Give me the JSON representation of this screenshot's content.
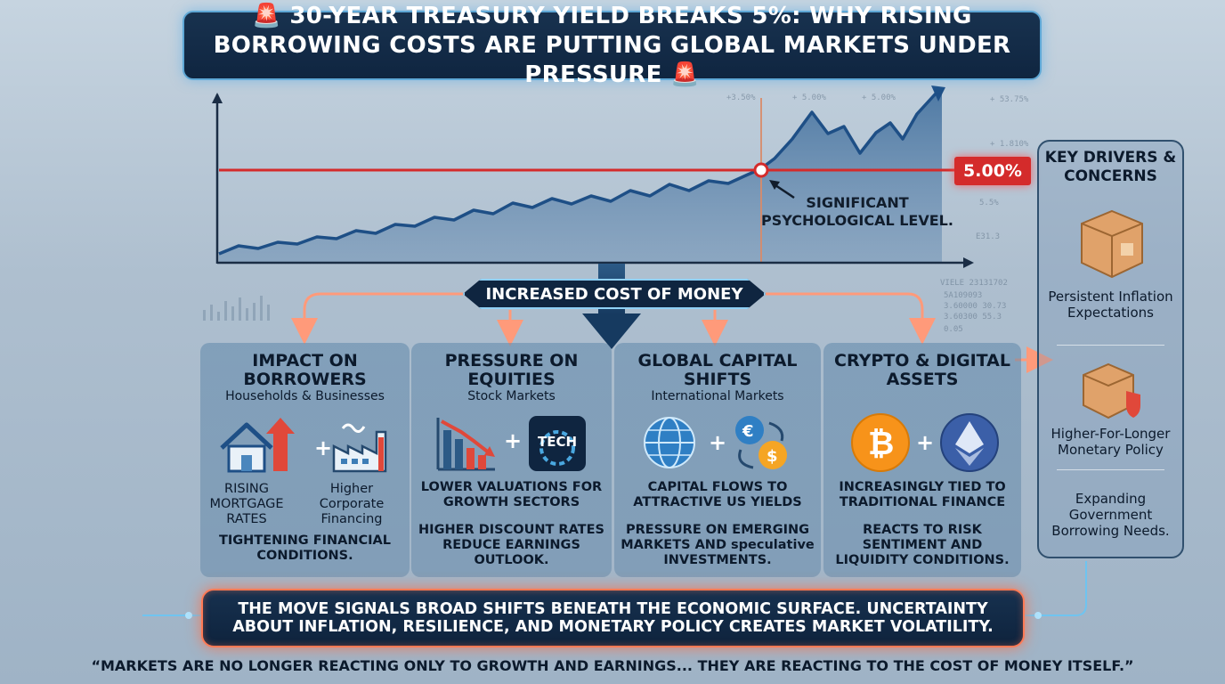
{
  "title": "🚨 30-YEAR TREASURY YIELD BREAKS 5%: WHY RISING BORROWING COSTS ARE PUTTING GLOBAL MARKETS UNDER PRESSURE 🚨",
  "chart": {
    "threshold_label": "5.00%",
    "annotation": "SIGNIFICANT PSYCHOLOGICAL LEVEL.",
    "colors": {
      "line": "#1e4f86",
      "threshold": "#d42b2b",
      "alert": "#ff5a3a"
    }
  },
  "center_banner": "INCREASED COST OF MONEY",
  "panels": [
    {
      "title": "IMPACT ON BORROWERS",
      "subtitle": "Households & Businesses",
      "icons": [
        "house-arrow-icon",
        "factory-icon"
      ],
      "left_label": "RISING MORTGAGE RATES",
      "right_label": "Higher Corporate Financing",
      "note": "TIGHTENING FINANCIAL CONDITIONS."
    },
    {
      "title": "PRESSURE ON EQUITIES",
      "subtitle": "Stock Markets",
      "icons": [
        "falling-bars-icon",
        "tech-gear-icon"
      ],
      "tech_badge": "TECH",
      "point1": "LOWER VALUATIONS FOR GROWTH SECTORS",
      "point2": "HIGHER DISCOUNT RATES REDUCE EARNINGS OUTLOOK."
    },
    {
      "title": "GLOBAL CAPITAL SHIFTS",
      "subtitle": "International Markets",
      "icons": [
        "globe-icon",
        "currency-exchange-icon"
      ],
      "point1": "CAPITAL FLOWS TO ATTRACTIVE US YIELDS",
      "point2": "PRESSURE ON EMERGING MARKETS AND speculative INVESTMENTS."
    },
    {
      "title": "CRYPTO & DIGITAL ASSETS",
      "subtitle": "",
      "icons": [
        "bitcoin-icon",
        "ethereum-icon"
      ],
      "point1": "INCREASINGLY TIED TO TRADITIONAL FINANCE",
      "point2": "REACTS TO RISK SENTIMENT AND LIQUIDITY CONDITIONS."
    }
  ],
  "key_drivers": {
    "title": "KEY DRIVERS & CONCERNS",
    "items": [
      {
        "label": "Persistent Inflation Expectations",
        "icon": "box-icon"
      },
      {
        "label": "Higher-For-Longer Monetary Policy",
        "icon": "box-shield-icon"
      },
      {
        "label": "Expanding Government Borrowing Needs.",
        "icon": ""
      }
    ]
  },
  "bottom_message": "THE MOVE SIGNALS BROAD SHIFTS BENEATH THE ECONOMIC SURFACE. UNCERTAINTY ABOUT INFLATION, RESILIENCE, AND MONETARY POLICY CREATES MARKET VOLATILITY.",
  "quote": "“MARKETS ARE NO LONGER REACTING ONLY TO GROWTH AND EARNINGS... THEY ARE REACTING TO THE COST OF MONEY ITSELF.”"
}
